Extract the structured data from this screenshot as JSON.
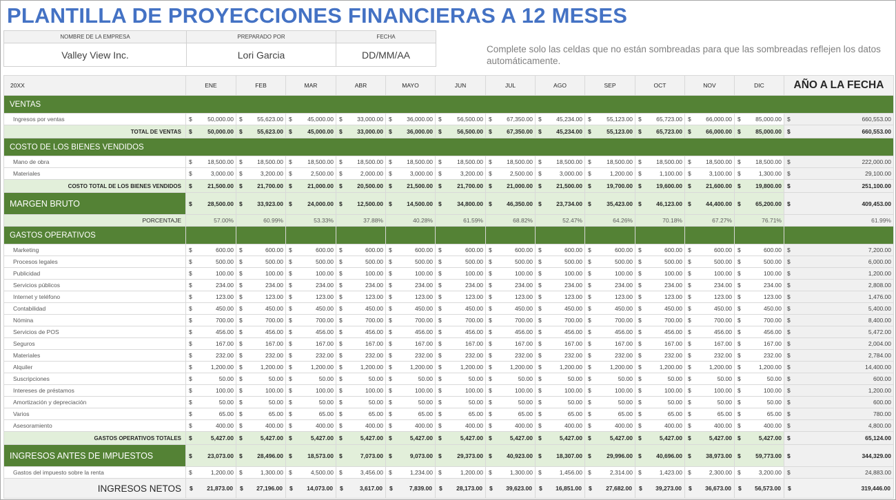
{
  "title": "PLANTILLA DE PROYECCIONES FINANCIERAS A 12 MESES",
  "info": {
    "company_label": "NOMBRE DE LA EMPRESA",
    "company_value": "Valley View Inc.",
    "prepared_label": "PREPARADO POR",
    "prepared_value": "Lori Garcia",
    "date_label": "FECHA",
    "date_value": "DD/MM/AA"
  },
  "note": "Complete solo las celdas que no están sombreadas para que las sombreadas reflejen los datos automáticamente.",
  "currency_symbol": "$",
  "colors": {
    "title": "#4472c4",
    "section_green": "#548235",
    "total_light_green": "#e2efda",
    "ytd_gray": "#f0f0f0"
  },
  "header": {
    "year": "20XX",
    "months": [
      "ENE",
      "FEB",
      "MAR",
      "ABR",
      "MAYO",
      "JUN",
      "JUL",
      "AGO",
      "SEP",
      "OCT",
      "NOV",
      "DIC"
    ],
    "ytd": "AÑO A LA FECHA"
  },
  "ventas": {
    "section": "VENTAS",
    "rows": [
      {
        "label": "Ingresos por ventas",
        "values": [
          "50,000.00",
          "55,623.00",
          "45,000.00",
          "33,000.00",
          "36,000.00",
          "56,500.00",
          "67,350.00",
          "45,234.00",
          "55,123.00",
          "65,723.00",
          "66,000.00",
          "85,000.00"
        ],
        "ytd": "660,553.00"
      }
    ],
    "total": {
      "label": "TOTAL DE VENTAS",
      "values": [
        "50,000.00",
        "55,623.00",
        "45,000.00",
        "33,000.00",
        "36,000.00",
        "56,500.00",
        "67,350.00",
        "45,234.00",
        "55,123.00",
        "65,723.00",
        "66,000.00",
        "85,000.00"
      ],
      "ytd": "660,553.00"
    }
  },
  "cogs": {
    "section": "COSTO DE LOS BIENES VENDIDOS",
    "rows": [
      {
        "label": "Mano de obra",
        "values": [
          "18,500.00",
          "18,500.00",
          "18,500.00",
          "18,500.00",
          "18,500.00",
          "18,500.00",
          "18,500.00",
          "18,500.00",
          "18,500.00",
          "18,500.00",
          "18,500.00",
          "18,500.00"
        ],
        "ytd": "222,000.00"
      },
      {
        "label": "Materiales",
        "values": [
          "3,000.00",
          "3,200.00",
          "2,500.00",
          "2,000.00",
          "3,000.00",
          "3,200.00",
          "2,500.00",
          "3,000.00",
          "1,200.00",
          "1,100.00",
          "3,100.00",
          "1,300.00"
        ],
        "ytd": "29,100.00"
      }
    ],
    "total": {
      "label": "COSTO TOTAL DE LOS BIENES VENDIDOS",
      "values": [
        "21,500.00",
        "21,700.00",
        "21,000.00",
        "20,500.00",
        "21,500.00",
        "21,700.00",
        "21,000.00",
        "21,500.00",
        "19,700.00",
        "19,600.00",
        "21,600.00",
        "19,800.00"
      ],
      "ytd": "251,100.00"
    }
  },
  "gross_margin": {
    "label": "MARGEN BRUTO",
    "values": [
      "28,500.00",
      "33,923.00",
      "24,000.00",
      "12,500.00",
      "14,500.00",
      "34,800.00",
      "46,350.00",
      "23,734.00",
      "35,423.00",
      "46,123.00",
      "44,400.00",
      "65,200.00"
    ],
    "ytd": "409,453.00",
    "pct_label": "PORCENTAJE",
    "pct_values": [
      "57.00%",
      "60.99%",
      "53.33%",
      "37.88%",
      "40.28%",
      "61.59%",
      "68.82%",
      "52.47%",
      "64.26%",
      "70.18%",
      "67.27%",
      "76.71%"
    ],
    "pct_ytd": "61.99%"
  },
  "opex": {
    "section": "GASTOS OPERATIVOS",
    "rows": [
      {
        "label": "Marketing",
        "values": [
          "600.00",
          "600.00",
          "600.00",
          "600.00",
          "600.00",
          "600.00",
          "600.00",
          "600.00",
          "600.00",
          "600.00",
          "600.00",
          "600.00"
        ],
        "ytd": "7,200.00"
      },
      {
        "label": "Procesos legales",
        "values": [
          "500.00",
          "500.00",
          "500.00",
          "500.00",
          "500.00",
          "500.00",
          "500.00",
          "500.00",
          "500.00",
          "500.00",
          "500.00",
          "500.00"
        ],
        "ytd": "6,000.00"
      },
      {
        "label": "Publicidad",
        "values": [
          "100.00",
          "100.00",
          "100.00",
          "100.00",
          "100.00",
          "100.00",
          "100.00",
          "100.00",
          "100.00",
          "100.00",
          "100.00",
          "100.00"
        ],
        "ytd": "1,200.00"
      },
      {
        "label": "Servicios públicos",
        "values": [
          "234.00",
          "234.00",
          "234.00",
          "234.00",
          "234.00",
          "234.00",
          "234.00",
          "234.00",
          "234.00",
          "234.00",
          "234.00",
          "234.00"
        ],
        "ytd": "2,808.00"
      },
      {
        "label": "Internet y teléfono",
        "values": [
          "123.00",
          "123.00",
          "123.00",
          "123.00",
          "123.00",
          "123.00",
          "123.00",
          "123.00",
          "123.00",
          "123.00",
          "123.00",
          "123.00"
        ],
        "ytd": "1,476.00"
      },
      {
        "label": "Contabilidad",
        "values": [
          "450.00",
          "450.00",
          "450.00",
          "450.00",
          "450.00",
          "450.00",
          "450.00",
          "450.00",
          "450.00",
          "450.00",
          "450.00",
          "450.00"
        ],
        "ytd": "5,400.00"
      },
      {
        "label": "Nómina",
        "values": [
          "700.00",
          "700.00",
          "700.00",
          "700.00",
          "700.00",
          "700.00",
          "700.00",
          "700.00",
          "700.00",
          "700.00",
          "700.00",
          "700.00"
        ],
        "ytd": "8,400.00"
      },
      {
        "label": "Servicios de POS",
        "values": [
          "456.00",
          "456.00",
          "456.00",
          "456.00",
          "456.00",
          "456.00",
          "456.00",
          "456.00",
          "456.00",
          "456.00",
          "456.00",
          "456.00"
        ],
        "ytd": "5,472.00"
      },
      {
        "label": "Seguros",
        "values": [
          "167.00",
          "167.00",
          "167.00",
          "167.00",
          "167.00",
          "167.00",
          "167.00",
          "167.00",
          "167.00",
          "167.00",
          "167.00",
          "167.00"
        ],
        "ytd": "2,004.00"
      },
      {
        "label": "Materiales",
        "values": [
          "232.00",
          "232.00",
          "232.00",
          "232.00",
          "232.00",
          "232.00",
          "232.00",
          "232.00",
          "232.00",
          "232.00",
          "232.00",
          "232.00"
        ],
        "ytd": "2,784.00"
      },
      {
        "label": "Alquiler",
        "values": [
          "1,200.00",
          "1,200.00",
          "1,200.00",
          "1,200.00",
          "1,200.00",
          "1,200.00",
          "1,200.00",
          "1,200.00",
          "1,200.00",
          "1,200.00",
          "1,200.00",
          "1,200.00"
        ],
        "ytd": "14,400.00"
      },
      {
        "label": "Suscripciones",
        "values": [
          "50.00",
          "50.00",
          "50.00",
          "50.00",
          "50.00",
          "50.00",
          "50.00",
          "50.00",
          "50.00",
          "50.00",
          "50.00",
          "50.00"
        ],
        "ytd": "600.00"
      },
      {
        "label": "Intereses de préstamos",
        "values": [
          "100.00",
          "100.00",
          "100.00",
          "100.00",
          "100.00",
          "100.00",
          "100.00",
          "100.00",
          "100.00",
          "100.00",
          "100.00",
          "100.00"
        ],
        "ytd": "1,200.00"
      },
      {
        "label": "Amortización y depreciación",
        "values": [
          "50.00",
          "50.00",
          "50.00",
          "50.00",
          "50.00",
          "50.00",
          "50.00",
          "50.00",
          "50.00",
          "50.00",
          "50.00",
          "50.00"
        ],
        "ytd": "600.00"
      },
      {
        "label": "Varios",
        "values": [
          "65.00",
          "65.00",
          "65.00",
          "65.00",
          "65.00",
          "65.00",
          "65.00",
          "65.00",
          "65.00",
          "65.00",
          "65.00",
          "65.00"
        ],
        "ytd": "780.00"
      },
      {
        "label": "Asesoramiento",
        "values": [
          "400.00",
          "400.00",
          "400.00",
          "400.00",
          "400.00",
          "400.00",
          "400.00",
          "400.00",
          "400.00",
          "400.00",
          "400.00",
          "400.00"
        ],
        "ytd": "4,800.00"
      }
    ],
    "total": {
      "label": "GASTOS OPERATIVOS TOTALES",
      "values": [
        "5,427.00",
        "5,427.00",
        "5,427.00",
        "5,427.00",
        "5,427.00",
        "5,427.00",
        "5,427.00",
        "5,427.00",
        "5,427.00",
        "5,427.00",
        "5,427.00",
        "5,427.00"
      ],
      "ytd": "65,124.00"
    }
  },
  "pretax": {
    "label": "INGRESOS ANTES DE IMPUESTOS",
    "values": [
      "23,073.00",
      "28,496.00",
      "18,573.00",
      "7,073.00",
      "9,073.00",
      "29,373.00",
      "40,923.00",
      "18,307.00",
      "29,996.00",
      "40,696.00",
      "38,973.00",
      "59,773.00"
    ],
    "ytd": "344,329.00"
  },
  "tax": {
    "label": "Gastos del impuesto sobre la renta",
    "values": [
      "1,200.00",
      "1,300.00",
      "4,500.00",
      "3,456.00",
      "1,234.00",
      "1,200.00",
      "1,300.00",
      "1,456.00",
      "2,314.00",
      "1,423.00",
      "2,300.00",
      "3,200.00"
    ],
    "ytd": "24,883.00"
  },
  "net": {
    "label": "INGRESOS NETOS",
    "values": [
      "21,873.00",
      "27,196.00",
      "14,073.00",
      "3,617.00",
      "7,839.00",
      "28,173.00",
      "39,623.00",
      "16,851.00",
      "27,682.00",
      "39,273.00",
      "36,673.00",
      "56,573.00"
    ],
    "ytd": "319,446.00"
  }
}
